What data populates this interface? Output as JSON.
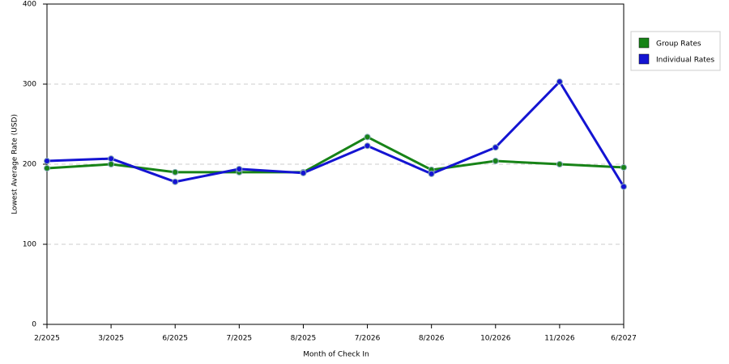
{
  "chart_data": {
    "type": "line",
    "x_label": "Month of Check In",
    "y_label": "Lowest Average Rate (USD)",
    "categories": [
      "2/2025",
      "3/2025",
      "6/2025",
      "7/2025",
      "8/2025",
      "7/2026",
      "8/2026",
      "10/2026",
      "11/2026",
      "6/2027"
    ],
    "series": [
      {
        "name": "Group Rates",
        "color": "#178317",
        "values": [
          195,
          200,
          190,
          190,
          190,
          234,
          193,
          204,
          200,
          196
        ]
      },
      {
        "name": "Individual Rates",
        "color": "#1414d2",
        "values": [
          204,
          207,
          178,
          194,
          189,
          223,
          188,
          221,
          303,
          172
        ]
      }
    ],
    "ylim": [
      0,
      400
    ],
    "yticks": [
      0,
      100,
      200,
      300,
      400
    ],
    "grid": true,
    "legend": "right"
  }
}
